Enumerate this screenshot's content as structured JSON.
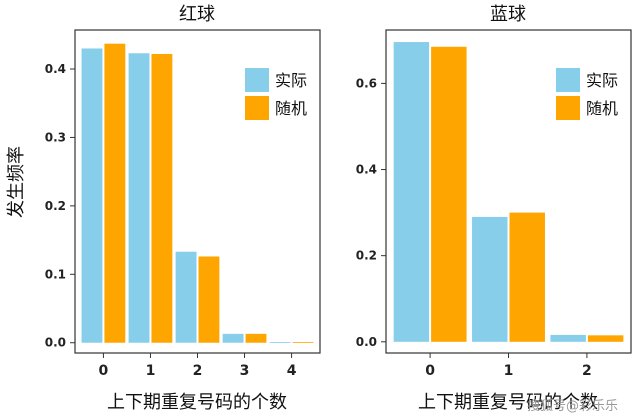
{
  "figure": {
    "ylabel": "发生频率",
    "xlabel_left": "上下期重复号码的个数",
    "xlabel_right": "上下期重复号码的个数",
    "watermark": "搜狐号@彩乐乐"
  },
  "colors": {
    "actual": "#87CEEB",
    "random": "#FFA500"
  },
  "chart_data": [
    {
      "type": "bar",
      "title": "红球",
      "categories": [
        "0",
        "1",
        "2",
        "3",
        "4"
      ],
      "series": [
        {
          "name": "实际",
          "values": [
            0.43,
            0.423,
            0.133,
            0.013,
            0.001
          ]
        },
        {
          "name": "随机",
          "values": [
            0.437,
            0.422,
            0.126,
            0.013,
            0.001
          ]
        }
      ],
      "ylim": [
        -0.015,
        0.457
      ],
      "yticks": [
        0.0,
        0.1,
        0.2,
        0.3,
        0.4
      ],
      "ytick_labels": [
        "0.0",
        "0.1",
        "0.2",
        "0.3",
        "0.4"
      ],
      "legend": "top-right"
    },
    {
      "type": "bar",
      "title": "蓝球",
      "categories": [
        "0",
        "1",
        "2"
      ],
      "series": [
        {
          "name": "实际",
          "values": [
            0.696,
            0.29,
            0.016
          ]
        },
        {
          "name": "随机",
          "values": [
            0.685,
            0.3,
            0.015
          ]
        }
      ],
      "ylim": [
        -0.026,
        0.724
      ],
      "yticks": [
        0.0,
        0.2,
        0.4,
        0.6
      ],
      "ytick_labels": [
        "0.0",
        "0.2",
        "0.4",
        "0.6"
      ],
      "legend": "top-right"
    }
  ]
}
